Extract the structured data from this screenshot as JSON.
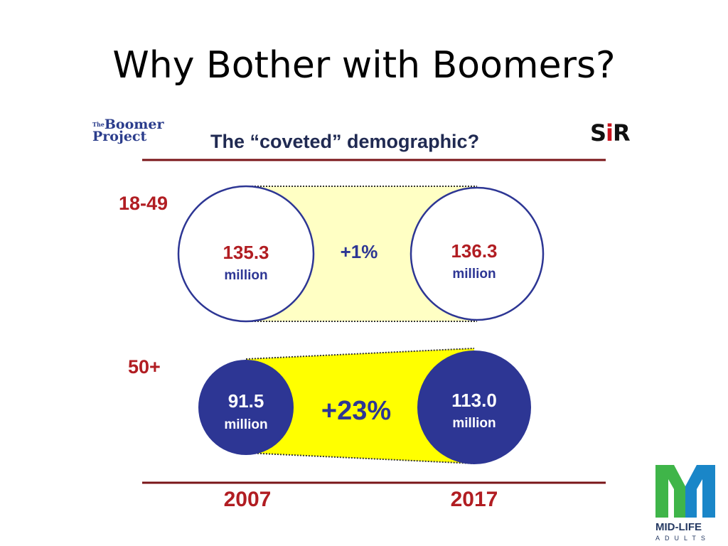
{
  "slide": {
    "title": "Why Bother with Boomers?"
  },
  "graphic": {
    "headline": "The “coveted” demographic?",
    "boomer_logo": {
      "line1_prefix": "The",
      "line1": "Boomer",
      "line2": "Project"
    },
    "sir_logo": {
      "left": "S",
      "right": "R"
    },
    "rows": [
      {
        "label": "18-49",
        "start": {
          "value": "135.3",
          "unit": "million"
        },
        "end": {
          "value": "136.3",
          "unit": "million"
        },
        "change": "+1%"
      },
      {
        "label": "50+",
        "start": {
          "value": "91.5",
          "unit": "million"
        },
        "end": {
          "value": "113.0",
          "unit": "million"
        },
        "change": "+23%"
      }
    ],
    "years": {
      "start": "2007",
      "end": "2017"
    }
  },
  "brand": {
    "name": "MID-LIFE",
    "sub": "ADULTS"
  },
  "colors": {
    "navy": "#2d3694",
    "dark_red": "#7a1518",
    "label_red": "#b11d22",
    "pale_yellow": "#ffffc4",
    "bright_yellow": "#ffff00",
    "green": "#3fb549",
    "blue": "#1a86c8"
  }
}
